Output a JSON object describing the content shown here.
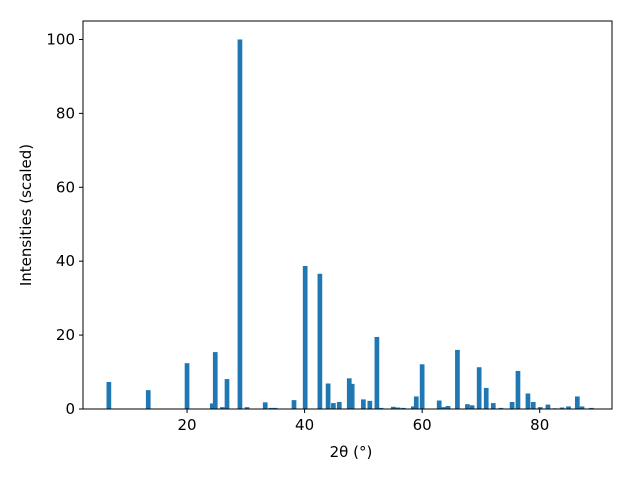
{
  "chart_data": {
    "type": "bar",
    "xlabel": "2θ (°)",
    "ylabel": "Intensities (scaled)",
    "color": "#1f77b4",
    "x": [
      6.7,
      13.4,
      20.0,
      24.3,
      24.8,
      26.0,
      26.8,
      29.0,
      30.2,
      33.3,
      34.3,
      35.0,
      38.2,
      40.1,
      42.6,
      44.0,
      44.9,
      45.9,
      47.6,
      48.1,
      50.0,
      51.1,
      52.3,
      53.0,
      55.1,
      55.9,
      56.8,
      58.5,
      59.0,
      60.0,
      62.9,
      63.7,
      64.4,
      66.0,
      67.7,
      68.5,
      69.7,
      70.9,
      72.1,
      73.4,
      75.3,
      76.3,
      78.0,
      78.9,
      80.1,
      81.4,
      82.6,
      83.8,
      84.9,
      86.4,
      87.2,
      88.8
    ],
    "values": [
      7.3,
      5.1,
      12.4,
      1.5,
      15.4,
      0.5,
      8.1,
      100,
      0.5,
      1.8,
      0.3,
      0.3,
      2.4,
      38.7,
      36.6,
      6.9,
      1.6,
      1.9,
      8.3,
      6.8,
      2.6,
      2.2,
      19.5,
      0.3,
      0.6,
      0.4,
      0.3,
      0.7,
      3.4,
      12.1,
      2.3,
      0.5,
      0.8,
      16.0,
      1.3,
      1.0,
      11.3,
      5.7,
      1.6,
      0.3,
      1.9,
      10.3,
      4.2,
      1.9,
      0.5,
      1.2,
      0.2,
      0.4,
      0.7,
      3.4,
      0.7,
      0.3
    ],
    "xlim": [
      2.3,
      92.3
    ],
    "ylim": [
      0,
      105
    ],
    "xticks": [
      20,
      40,
      60,
      80
    ],
    "yticks": [
      0,
      20,
      40,
      60,
      80,
      100
    ]
  }
}
